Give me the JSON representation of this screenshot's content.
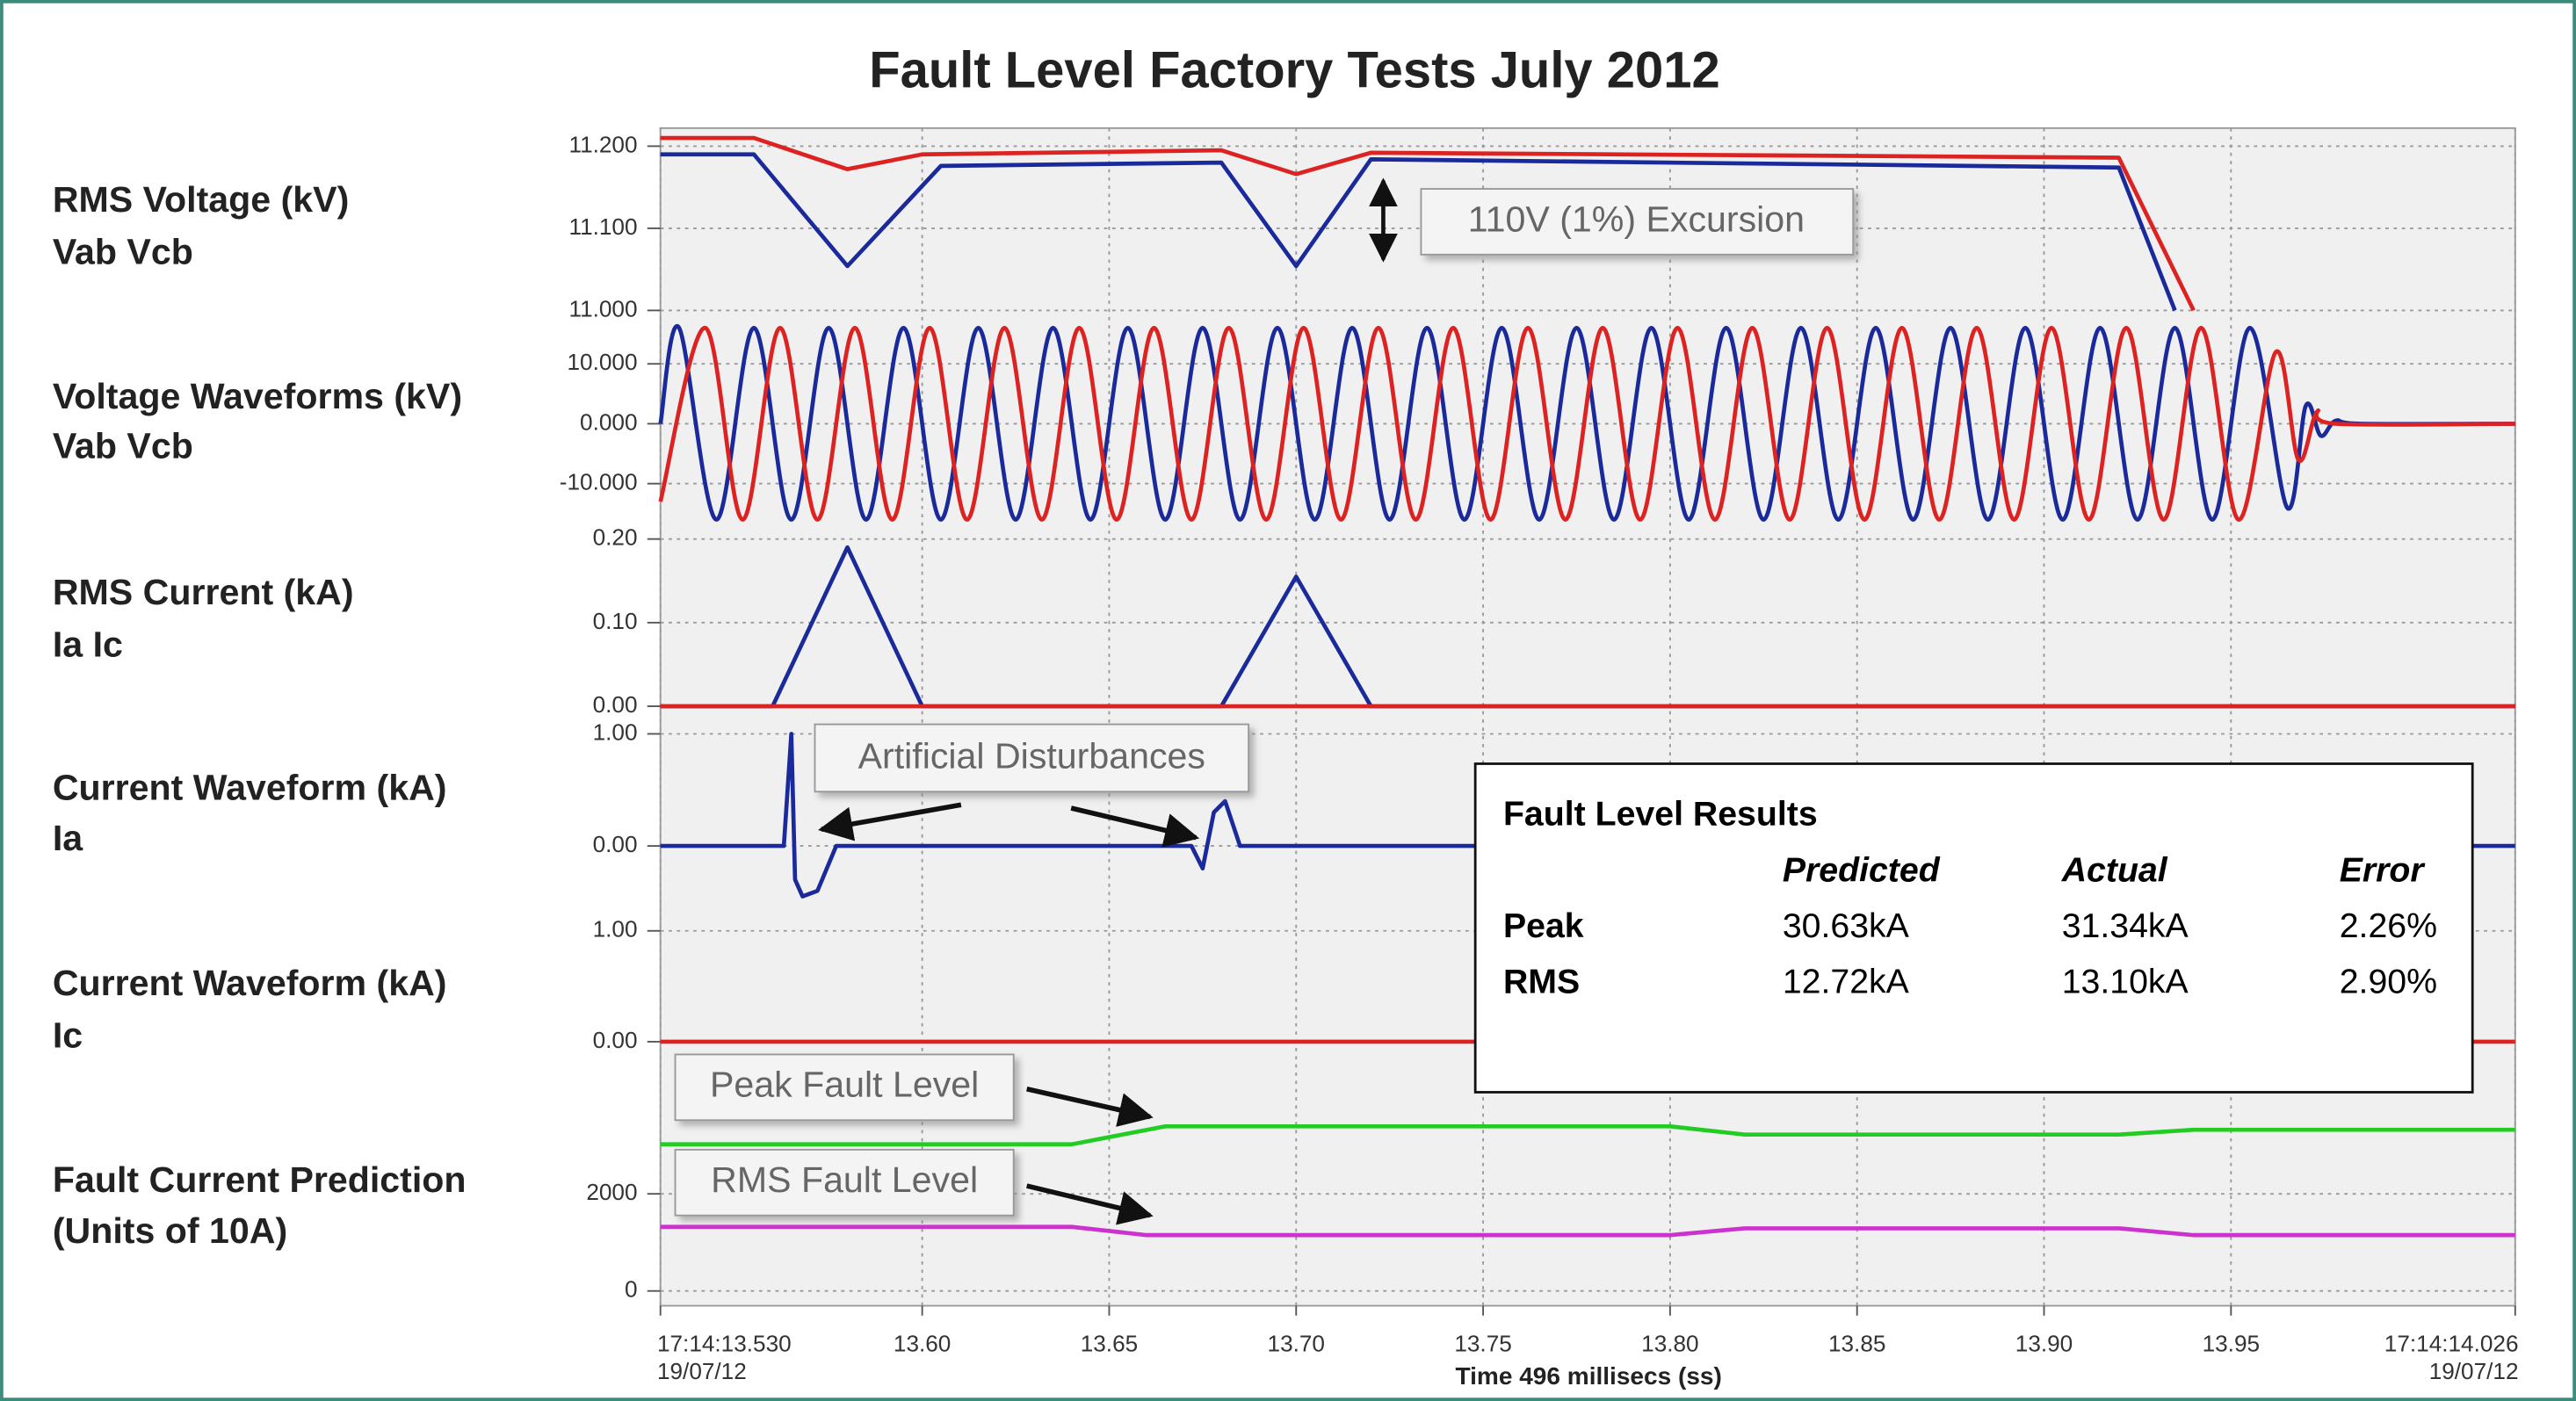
{
  "title": "Fault Level Factory Tests July 2012",
  "x_axis": {
    "label": "Time 496 millisecs (ss)",
    "xlim": [
      13.53,
      14.026
    ],
    "xticks": [
      {
        "value": 13.53,
        "label": "17:14:13.530",
        "date": "19/07/12"
      },
      {
        "value": 13.6,
        "label": "13.60"
      },
      {
        "value": 13.65,
        "label": "13.65"
      },
      {
        "value": 13.7,
        "label": "13.70"
      },
      {
        "value": 13.75,
        "label": "13.75"
      },
      {
        "value": 13.8,
        "label": "13.80"
      },
      {
        "value": 13.85,
        "label": "13.85"
      },
      {
        "value": 13.9,
        "label": "13.90"
      },
      {
        "value": 13.95,
        "label": "13.95"
      },
      {
        "value": 14.026,
        "label": "17:14:14.026",
        "date": "19/07/12"
      }
    ],
    "grid": true
  },
  "chart_data": [
    {
      "type": "line",
      "label": [
        "RMS Voltage (kV)",
        "Vab Vcb"
      ],
      "ylim": [
        11.0,
        11.222
      ],
      "yticks": [
        {
          "value": 11.0,
          "label": "11.000"
        },
        {
          "value": 11.1,
          "label": "11.100"
        },
        {
          "value": 11.2,
          "label": "11.200"
        }
      ],
      "series": [
        {
          "color": "#dd2222",
          "x": [
            13.53,
            13.555,
            13.58,
            13.6,
            13.68,
            13.7,
            13.72,
            13.92,
            13.94
          ],
          "values": [
            11.21,
            11.21,
            11.172,
            11.19,
            11.195,
            11.166,
            11.192,
            11.186,
            11.0
          ]
        },
        {
          "color": "#1a2a9a",
          "x": [
            13.53,
            13.555,
            13.58,
            13.605,
            13.68,
            13.7,
            13.72,
            13.92,
            13.935
          ],
          "values": [
            11.19,
            11.19,
            11.054,
            11.176,
            11.18,
            11.054,
            11.184,
            11.174,
            11.0
          ]
        }
      ]
    },
    {
      "type": "line",
      "smooth": true,
      "label": [
        "Voltage Waveforms (kV)",
        "Vab Vcb"
      ],
      "ylim": [
        -17,
        17
      ],
      "yticks": [
        {
          "value": 10,
          "label": "10.000"
        },
        {
          "value": 0,
          "label": "0.000"
        },
        {
          "value": -10,
          "label": "-10.000"
        }
      ],
      "series": [
        {
          "color": "#1a2a9a",
          "x": [
            13.53,
            13.535,
            13.545,
            13.555,
            13.565,
            13.575,
            13.585,
            13.595,
            13.605,
            13.615,
            13.625,
            13.635,
            13.645,
            13.655,
            13.665,
            13.675,
            13.685,
            13.695,
            13.705,
            13.715,
            13.725,
            13.735,
            13.745,
            13.755,
            13.765,
            13.775,
            13.785,
            13.795,
            13.805,
            13.815,
            13.825,
            13.835,
            13.845,
            13.855,
            13.865,
            13.875,
            13.885,
            13.895,
            13.905,
            13.915,
            13.925,
            13.935,
            13.945,
            13.955,
            13.965,
            13.97,
            13.974,
            13.978,
            13.985,
            14.026
          ],
          "values": [
            0,
            16,
            -16,
            16,
            -16,
            16,
            -16,
            16,
            -16,
            16,
            -16,
            16,
            -16,
            16,
            -16,
            16,
            -16,
            16,
            -16,
            16,
            -16,
            16,
            -16,
            16,
            -16,
            16,
            -16,
            16,
            -16,
            16,
            -16,
            16,
            -16,
            16,
            -16,
            16,
            -16,
            16,
            -16,
            16,
            -16,
            16,
            -16,
            16,
            -14,
            3,
            -2,
            0.5,
            0,
            0
          ]
        },
        {
          "color": "#dd2222",
          "x": [
            13.53,
            13.542,
            13.552,
            13.562,
            13.572,
            13.582,
            13.592,
            13.602,
            13.612,
            13.622,
            13.632,
            13.642,
            13.652,
            13.662,
            13.672,
            13.682,
            13.692,
            13.702,
            13.712,
            13.722,
            13.732,
            13.742,
            13.752,
            13.762,
            13.772,
            13.782,
            13.792,
            13.802,
            13.812,
            13.822,
            13.832,
            13.842,
            13.852,
            13.862,
            13.872,
            13.882,
            13.892,
            13.902,
            13.912,
            13.922,
            13.932,
            13.942,
            13.952,
            13.962,
            13.968,
            13.973,
            13.978,
            14.026
          ],
          "values": [
            -13,
            16,
            -16,
            16,
            -16,
            16,
            -16,
            16,
            -16,
            16,
            -16,
            16,
            -16,
            16,
            -16,
            16,
            -16,
            16,
            -16,
            16,
            -16,
            16,
            -16,
            16,
            -16,
            16,
            -16,
            16,
            -16,
            16,
            -16,
            16,
            -16,
            16,
            -16,
            16,
            -16,
            16,
            -16,
            16,
            -16,
            16,
            -16,
            12,
            -6,
            2,
            0,
            0
          ]
        }
      ]
    },
    {
      "type": "line",
      "label": [
        "RMS Current (kA)",
        "Ia Ic"
      ],
      "ylim": [
        0,
        0.22
      ],
      "yticks": [
        {
          "value": 0.2,
          "label": "0.20"
        },
        {
          "value": 0.1,
          "label": "0.10"
        },
        {
          "value": 0,
          "label": "0.00"
        }
      ],
      "series": [
        {
          "color": "#1a2a9a",
          "x": [
            13.53,
            13.56,
            13.58,
            13.6,
            13.68,
            13.7,
            13.72,
            14.026
          ],
          "values": [
            0,
            0,
            0.19,
            0,
            0,
            0.155,
            0,
            0
          ]
        },
        {
          "color": "#dd2222",
          "x": [
            13.53,
            14.026
          ],
          "values": [
            0,
            0
          ]
        }
      ]
    },
    {
      "type": "line",
      "label": [
        "Current Waveform (kA)",
        "Ia"
      ],
      "ylim": [
        -0.6,
        1.1
      ],
      "yticks": [
        {
          "value": 1,
          "label": "1.00"
        },
        {
          "value": 0,
          "label": "0.00"
        }
      ],
      "series": [
        {
          "color": "#1a2a9a",
          "x": [
            13.53,
            13.563,
            13.565,
            13.566,
            13.568,
            13.572,
            13.577,
            13.672,
            13.675,
            13.678,
            13.681,
            13.685,
            14.026
          ],
          "values": [
            0,
            0,
            1.0,
            -0.3,
            -0.45,
            -0.4,
            0,
            0,
            -0.2,
            0.3,
            0.4,
            0,
            0
          ]
        }
      ]
    },
    {
      "type": "line",
      "label": [
        "Current Waveform (kA)",
        "Ic"
      ],
      "ylim": [
        -0.1,
        1.1
      ],
      "yticks": [
        {
          "value": 1,
          "label": "1.00"
        },
        {
          "value": 0,
          "label": "0.00"
        }
      ],
      "series": [
        {
          "color": "#dd2222",
          "x": [
            13.53,
            14.026
          ],
          "values": [
            0,
            0
          ]
        }
      ]
    },
    {
      "type": "line",
      "label": [
        "Fault Current Prediction",
        "(Units of 10A)"
      ],
      "ylim": [
        0,
        4600
      ],
      "yticks": [
        2000,
        0
      ],
      "series": [
        {
          "color": "#22cc22",
          "x": [
            13.53,
            13.64,
            13.665,
            13.8,
            13.82,
            13.92,
            13.94,
            14.026
          ],
          "values": [
            3020,
            3020,
            3390,
            3390,
            3220,
            3220,
            3320,
            3320
          ]
        },
        {
          "color": "#cc33cc",
          "x": [
            13.53,
            13.64,
            13.66,
            13.8,
            13.82,
            13.92,
            13.94,
            14.026
          ],
          "values": [
            1320,
            1320,
            1150,
            1150,
            1290,
            1290,
            1150,
            1150
          ]
        }
      ]
    }
  ],
  "annotations": [
    "110V (1%) Excursion",
    "Artificial Disturbances",
    "Peak Fault Level",
    "RMS Fault Level"
  ],
  "table": {
    "title": "Fault Level Results",
    "columns": [
      "Predicted",
      "Actual",
      "Error"
    ],
    "rows": [
      {
        "label": "Peak",
        "cells": [
          "30.63kA",
          "31.34kA",
          "2.26%"
        ]
      },
      {
        "label": "RMS",
        "cells": [
          "12.72kA",
          "13.10kA",
          "2.90%"
        ]
      }
    ]
  }
}
